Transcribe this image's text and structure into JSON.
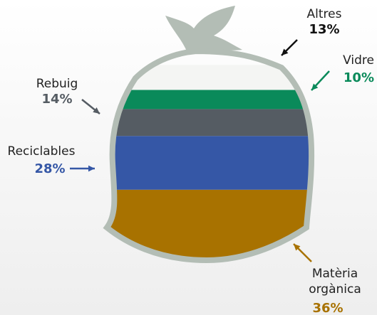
{
  "chart_data": {
    "type": "bag",
    "series": [
      {
        "name": "Matèria orgànica",
        "color": "#a87200",
        "values": [
          36
        ],
        "value_labels": [
          "36%"
        ]
      },
      {
        "name": "Reciclables",
        "color": "#3557a6",
        "values": [
          28
        ],
        "value_labels": [
          "28%"
        ]
      },
      {
        "name": "Rebuig",
        "color": "#555c63",
        "values": [
          14
        ],
        "value_labels": [
          "14%"
        ]
      },
      {
        "name": "Vidre",
        "color": "#0a8a5a",
        "values": [
          10
        ],
        "value_labels": [
          "10%"
        ]
      },
      {
        "name": "Altres",
        "color": "#f4f5f3",
        "values": [
          13
        ],
        "value_labels": [
          "13%"
        ]
      }
    ]
  }
}
